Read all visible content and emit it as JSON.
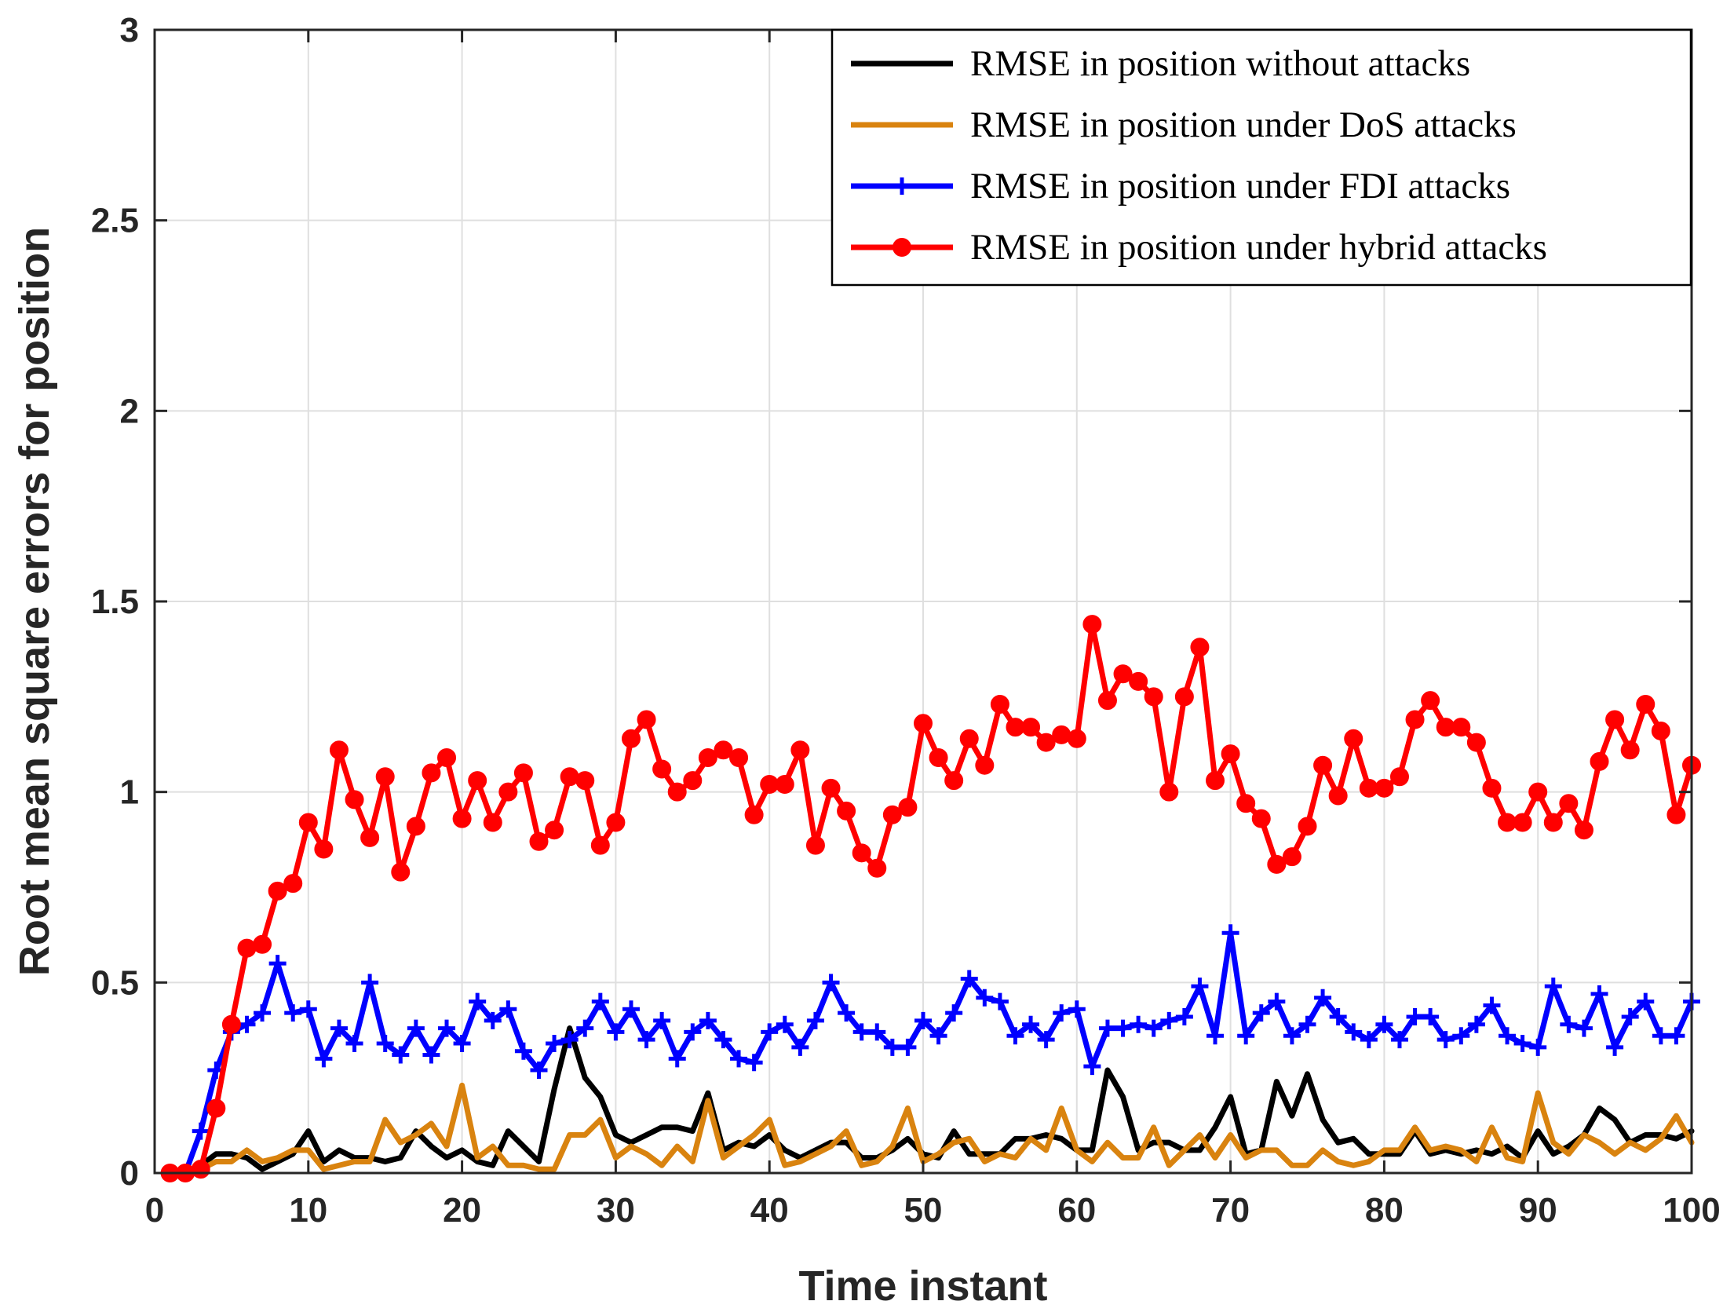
{
  "chart_data": {
    "type": "line",
    "title": "",
    "xlabel": "Time instant",
    "ylabel": "Root mean square errors for position",
    "xlim": [
      0,
      100
    ],
    "ylim": [
      0,
      3
    ],
    "xticks": [
      0,
      10,
      20,
      30,
      40,
      50,
      60,
      70,
      80,
      90,
      100
    ],
    "yticks": [
      0,
      0.5,
      1,
      1.5,
      2,
      2.5,
      3
    ],
    "ytick_labels": [
      "0",
      "0.5",
      "1",
      "1.5",
      "2",
      "2.5",
      "3"
    ],
    "grid": true,
    "legend_position": "top-right",
    "x": [
      1,
      2,
      3,
      4,
      5,
      6,
      7,
      8,
      9,
      10,
      11,
      12,
      13,
      14,
      15,
      16,
      17,
      18,
      19,
      20,
      21,
      22,
      23,
      24,
      25,
      26,
      27,
      28,
      29,
      30,
      31,
      32,
      33,
      34,
      35,
      36,
      37,
      38,
      39,
      40,
      41,
      42,
      43,
      44,
      45,
      46,
      47,
      48,
      49,
      50,
      51,
      52,
      53,
      54,
      55,
      56,
      57,
      58,
      59,
      60,
      61,
      62,
      63,
      64,
      65,
      66,
      67,
      68,
      69,
      70,
      71,
      72,
      73,
      74,
      75,
      76,
      77,
      78,
      79,
      80,
      81,
      82,
      83,
      84,
      85,
      86,
      87,
      88,
      89,
      90,
      91,
      92,
      93,
      94,
      95,
      96,
      97,
      98,
      99,
      100
    ],
    "series": [
      {
        "name": "RMSE in position without attacks",
        "color": "#000000",
        "marker": "none",
        "values": [
          0,
          0,
          0.02,
          0.05,
          0.05,
          0.04,
          0.01,
          0.03,
          0.05,
          0.11,
          0.03,
          0.06,
          0.04,
          0.04,
          0.03,
          0.04,
          0.11,
          0.07,
          0.04,
          0.06,
          0.03,
          0.02,
          0.11,
          0.07,
          0.03,
          0.22,
          0.38,
          0.25,
          0.2,
          0.1,
          0.08,
          0.1,
          0.12,
          0.12,
          0.11,
          0.21,
          0.06,
          0.08,
          0.07,
          0.1,
          0.06,
          0.04,
          0.06,
          0.08,
          0.08,
          0.04,
          0.04,
          0.06,
          0.09,
          0.05,
          0.04,
          0.11,
          0.05,
          0.05,
          0.05,
          0.09,
          0.09,
          0.1,
          0.09,
          0.06,
          0.06,
          0.27,
          0.2,
          0.06,
          0.08,
          0.08,
          0.06,
          0.06,
          0.12,
          0.2,
          0.05,
          0.06,
          0.24,
          0.15,
          0.26,
          0.14,
          0.08,
          0.09,
          0.05,
          0.05,
          0.05,
          0.11,
          0.05,
          0.06,
          0.05,
          0.06,
          0.05,
          0.07,
          0.04,
          0.11,
          0.05,
          0.07,
          0.1,
          0.17,
          0.14,
          0.08,
          0.1,
          0.1,
          0.09,
          0.11
        ]
      },
      {
        "name": "RMSE in position under DoS attacks",
        "color": "#D9830F",
        "marker": "none",
        "values": [
          0,
          0,
          0.01,
          0.03,
          0.03,
          0.06,
          0.03,
          0.04,
          0.06,
          0.06,
          0.01,
          0.02,
          0.03,
          0.03,
          0.14,
          0.08,
          0.1,
          0.13,
          0.07,
          0.23,
          0.04,
          0.07,
          0.02,
          0.02,
          0.01,
          0.01,
          0.1,
          0.1,
          0.14,
          0.04,
          0.07,
          0.05,
          0.02,
          0.07,
          0.03,
          0.19,
          0.04,
          0.07,
          0.1,
          0.14,
          0.02,
          0.03,
          0.05,
          0.07,
          0.11,
          0.02,
          0.03,
          0.07,
          0.17,
          0.03,
          0.05,
          0.08,
          0.09,
          0.03,
          0.05,
          0.04,
          0.09,
          0.06,
          0.17,
          0.06,
          0.03,
          0.08,
          0.04,
          0.04,
          0.12,
          0.02,
          0.06,
          0.1,
          0.04,
          0.1,
          0.04,
          0.06,
          0.06,
          0.02,
          0.02,
          0.06,
          0.03,
          0.02,
          0.03,
          0.06,
          0.06,
          0.12,
          0.06,
          0.07,
          0.06,
          0.03,
          0.12,
          0.04,
          0.03,
          0.21,
          0.08,
          0.05,
          0.1,
          0.08,
          0.05,
          0.08,
          0.06,
          0.09,
          0.15,
          0.08
        ]
      },
      {
        "name": "RMSE in position under FDI attacks",
        "color": "#0000FF",
        "marker": "plus",
        "values": [
          0,
          0,
          0.11,
          0.27,
          0.37,
          0.39,
          0.42,
          0.55,
          0.42,
          0.43,
          0.3,
          0.38,
          0.34,
          0.5,
          0.34,
          0.31,
          0.38,
          0.31,
          0.38,
          0.34,
          0.45,
          0.4,
          0.43,
          0.32,
          0.27,
          0.34,
          0.35,
          0.38,
          0.45,
          0.37,
          0.43,
          0.35,
          0.4,
          0.3,
          0.37,
          0.4,
          0.35,
          0.3,
          0.29,
          0.37,
          0.39,
          0.33,
          0.4,
          0.5,
          0.42,
          0.37,
          0.37,
          0.33,
          0.33,
          0.4,
          0.36,
          0.42,
          0.51,
          0.46,
          0.45,
          0.36,
          0.39,
          0.35,
          0.42,
          0.43,
          0.28,
          0.38,
          0.38,
          0.39,
          0.38,
          0.4,
          0.41,
          0.49,
          0.36,
          0.63,
          0.36,
          0.42,
          0.45,
          0.36,
          0.39,
          0.46,
          0.41,
          0.37,
          0.35,
          0.39,
          0.35,
          0.41,
          0.41,
          0.35,
          0.36,
          0.39,
          0.44,
          0.36,
          0.34,
          0.33,
          0.49,
          0.39,
          0.38,
          0.47,
          0.33,
          0.41,
          0.45,
          0.36,
          0.36,
          0.45
        ]
      },
      {
        "name": "RMSE in position under hybrid attacks",
        "color": "#FF0000",
        "marker": "circle",
        "values": [
          0,
          0,
          0.01,
          0.17,
          0.39,
          0.59,
          0.6,
          0.74,
          0.76,
          0.92,
          0.85,
          1.11,
          0.98,
          0.88,
          1.04,
          0.79,
          0.91,
          1.05,
          1.09,
          0.93,
          1.03,
          0.92,
          1,
          1.05,
          0.87,
          0.9,
          1.04,
          1.03,
          0.86,
          0.92,
          1.14,
          1.19,
          1.06,
          1,
          1.03,
          1.09,
          1.11,
          1.09,
          0.94,
          1.02,
          1.02,
          1.11,
          0.86,
          1.01,
          0.95,
          0.84,
          0.8,
          0.94,
          0.96,
          1.18,
          1.09,
          1.03,
          1.14,
          1.07,
          1.23,
          1.17,
          1.17,
          1.13,
          1.15,
          1.14,
          1.44,
          1.24,
          1.31,
          1.29,
          1.25,
          1,
          1.25,
          1.38,
          1.03,
          1.1,
          0.97,
          0.93,
          0.81,
          0.83,
          0.91,
          1.07,
          0.99,
          1.14,
          1.01,
          1.01,
          1.04,
          1.19,
          1.24,
          1.17,
          1.17,
          1.13,
          1.01,
          0.92,
          0.92,
          1,
          0.92,
          0.97,
          0.9,
          1.08,
          1.19,
          1.11,
          1.23,
          1.16,
          0.94,
          1.07
        ]
      }
    ]
  }
}
